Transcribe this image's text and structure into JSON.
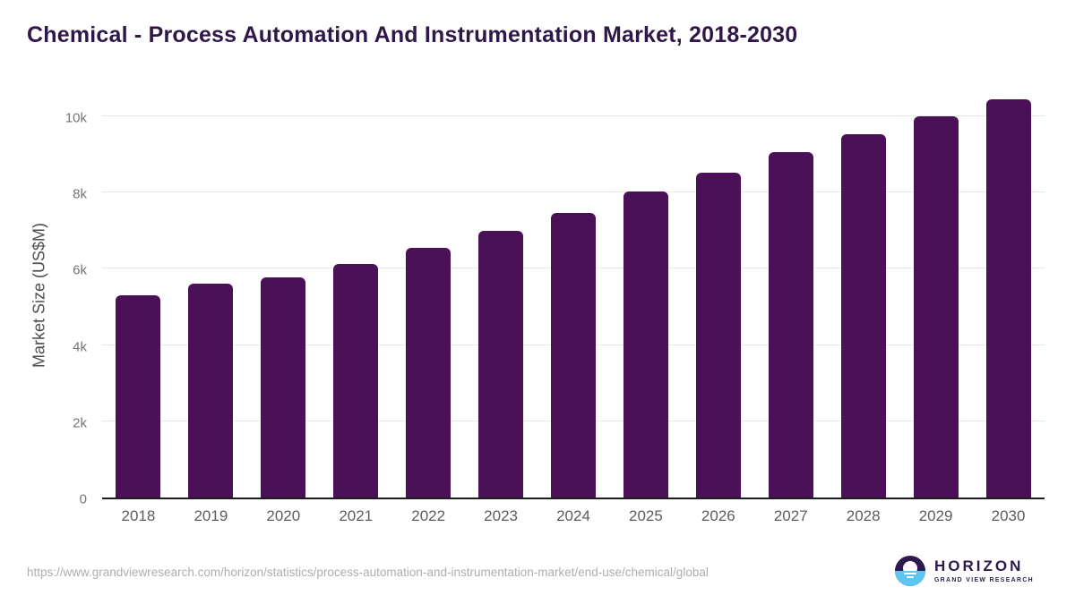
{
  "title": "Chemical - Process Automation And Instrumentation Market, 2018-2030",
  "chart_data": {
    "type": "bar",
    "title": "Chemical - Process Automation And Instrumentation Market, 2018-2030",
    "categories": [
      "2018",
      "2019",
      "2020",
      "2021",
      "2022",
      "2023",
      "2024",
      "2025",
      "2026",
      "2027",
      "2028",
      "2029",
      "2030"
    ],
    "values": [
      5300,
      5600,
      5780,
      6120,
      6540,
      7000,
      7470,
      8030,
      8530,
      9050,
      9530,
      10000,
      10450
    ],
    "xlabel": "",
    "ylabel": "Market Size (US$M)",
    "ylim": [
      0,
      10750
    ],
    "yticks": [
      {
        "label": "0",
        "value": 0
      },
      {
        "label": "2k",
        "value": 2000
      },
      {
        "label": "4k",
        "value": 4000
      },
      {
        "label": "6k",
        "value": 6000
      },
      {
        "label": "8k",
        "value": 8000
      },
      {
        "label": "10k",
        "value": 10000
      }
    ],
    "grid": true,
    "legend": false,
    "bar_color": "#4a1158"
  },
  "colors": {
    "bar": "#4a1158",
    "title": "#2f1747",
    "axis_line": "#1d1d1d",
    "gridline": "#e8e8e8",
    "tick_text": "#757575",
    "x_tick_text": "#5c5c5c",
    "url_text": "#aeaeae",
    "logo_dark": "#2d1b4e",
    "logo_blue": "#5ec4f0"
  },
  "footer": {
    "source_url": "https://www.grandviewresearch.com/horizon/statistics/process-automation-and-instrumentation-market/end-use/chemical/global",
    "logo": {
      "name": "HORIZON",
      "subtitle": "GRAND VIEW RESEARCH"
    }
  }
}
